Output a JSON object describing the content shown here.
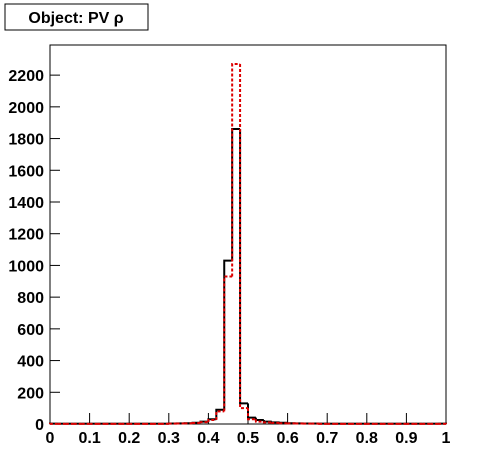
{
  "chart_data": {
    "type": "histogram",
    "title": "Object: PV ρ",
    "bins": [
      0,
      0.02,
      0.04,
      0.06,
      0.08,
      0.1,
      0.12,
      0.14,
      0.16,
      0.18,
      0.2,
      0.22,
      0.24,
      0.26,
      0.28,
      0.3,
      0.32,
      0.34,
      0.36,
      0.38,
      0.4,
      0.42,
      0.44,
      0.46,
      0.48,
      0.5,
      0.52,
      0.54,
      0.56,
      0.58,
      0.6,
      0.62,
      0.64,
      0.66,
      0.68,
      0.7,
      0.72,
      0.74,
      0.76,
      0.78,
      0.8,
      0.82,
      0.84,
      0.86,
      0.88,
      0.9,
      0.92,
      0.94,
      0.96,
      0.98,
      1
    ],
    "series": [
      {
        "color": "#000000",
        "dash": false,
        "values": [
          2,
          2,
          2,
          2,
          2,
          2,
          2,
          2,
          2,
          2,
          2,
          2,
          2,
          2,
          2,
          3,
          4,
          5,
          8,
          15,
          30,
          90,
          1030,
          1860,
          130,
          40,
          25,
          15,
          10,
          8,
          5,
          4,
          3,
          3,
          2,
          2,
          2,
          2,
          2,
          2,
          2,
          2,
          2,
          2,
          2,
          2,
          2,
          2,
          2,
          2
        ]
      },
      {
        "color": "#dd0000",
        "dash": true,
        "values": [
          1,
          1,
          1,
          1,
          1,
          1,
          1,
          1,
          1,
          1,
          1,
          1,
          1,
          1,
          1,
          2,
          3,
          4,
          6,
          12,
          25,
          80,
          930,
          2270,
          100,
          30,
          15,
          10,
          7,
          5,
          4,
          3,
          2,
          2,
          1,
          1,
          1,
          1,
          1,
          1,
          1,
          1,
          1,
          1,
          1,
          1,
          1,
          1,
          1,
          1
        ]
      }
    ],
    "xlim": [
      0,
      1
    ],
    "xticks": [
      0,
      0.1,
      0.2,
      0.3,
      0.4,
      0.5,
      0.6,
      0.7,
      0.8,
      0.9,
      1
    ],
    "ylim": [
      0,
      2390
    ],
    "yticks": [
      0,
      200,
      400,
      600,
      800,
      1000,
      1200,
      1400,
      1600,
      1800,
      2000,
      2200
    ]
  }
}
